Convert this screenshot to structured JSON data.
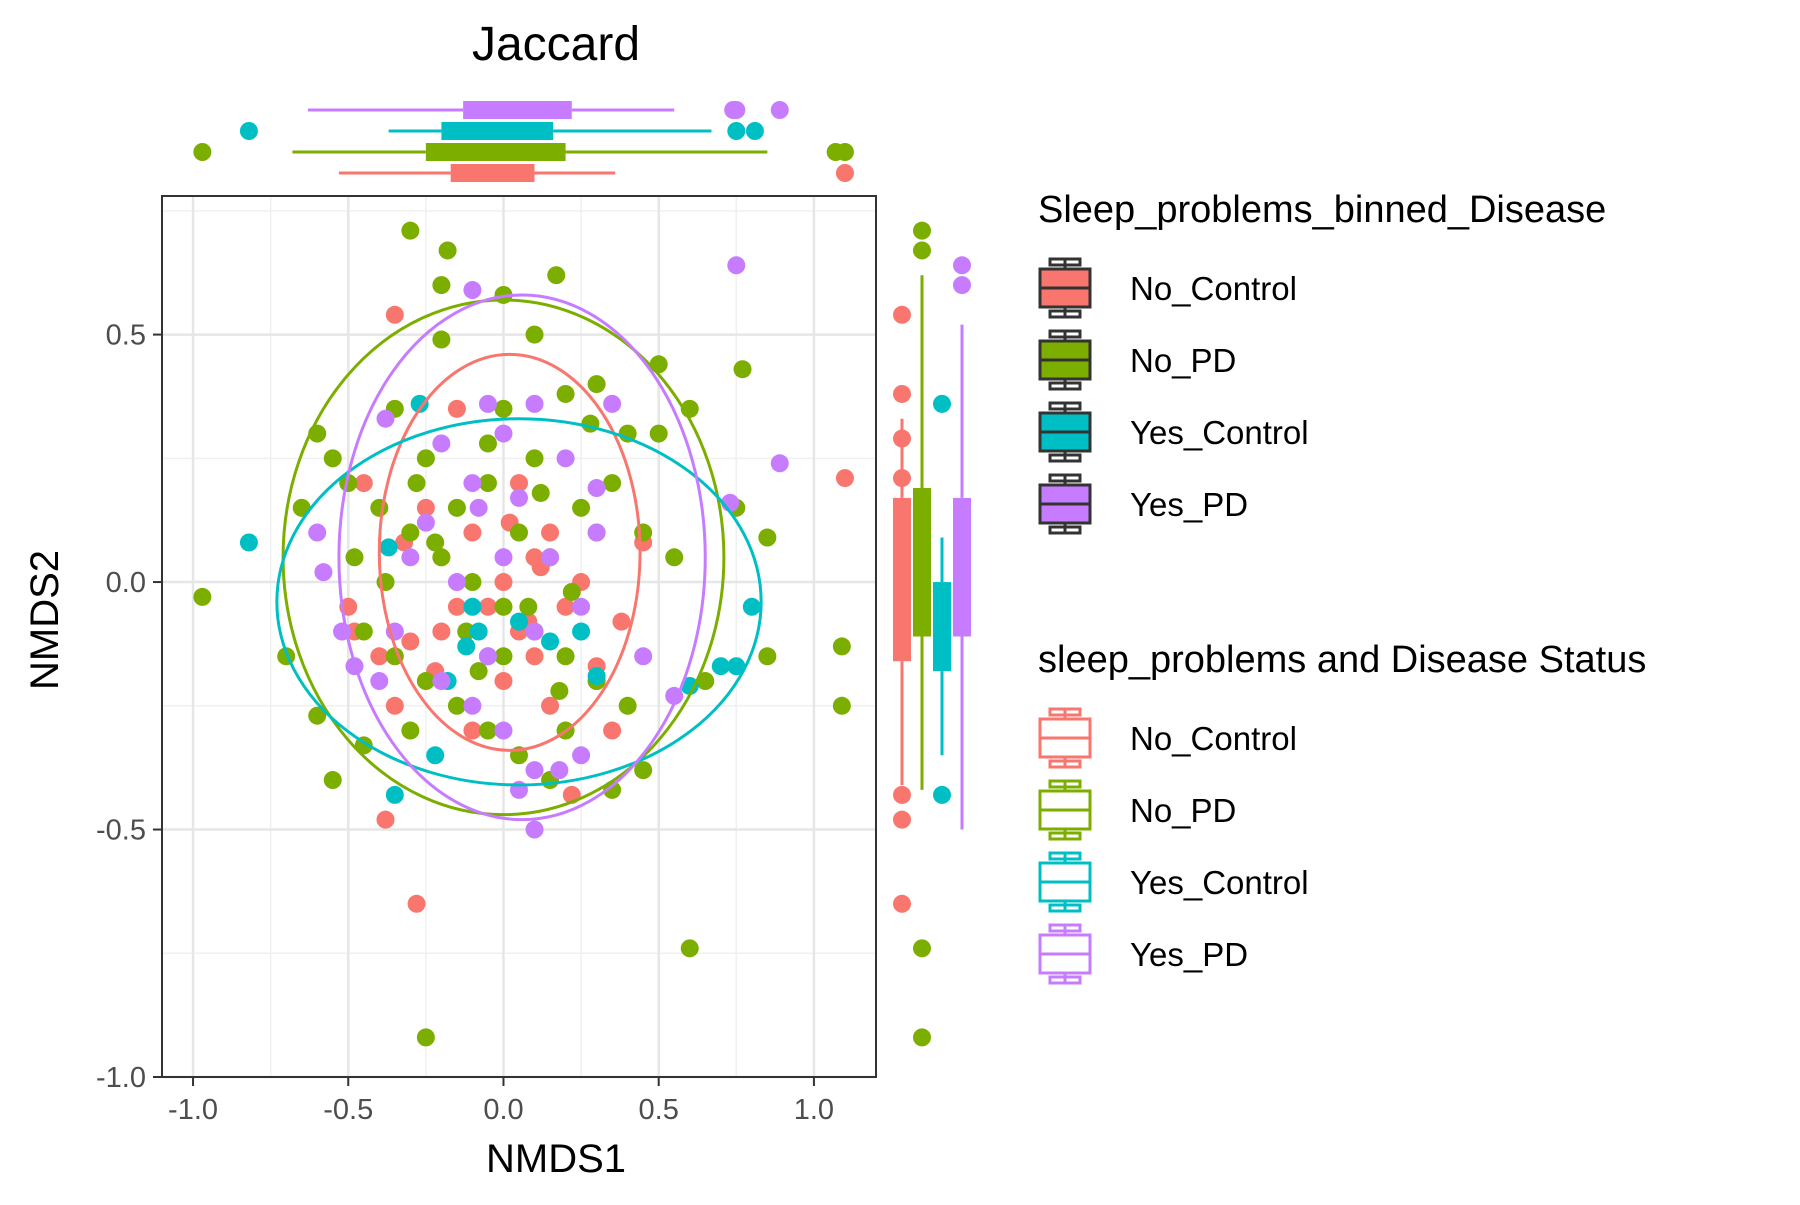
{
  "chart_data": {
    "type": "scatter",
    "title": "Jaccard",
    "xlabel": "NMDS1",
    "ylabel": "NMDS2",
    "xlim": [
      -1.1,
      1.2
    ],
    "ylim": [
      -1.0,
      0.78
    ],
    "xticks": [
      -1.0,
      -0.5,
      0.0,
      0.5,
      1.0
    ],
    "yticks": [
      -1.0,
      -0.5,
      0.0,
      0.5
    ],
    "xtick_labels": [
      "-1.0",
      "-0.5",
      "0.0",
      "0.5",
      "1.0"
    ],
    "ytick_labels": [
      "-1.0",
      "-0.5",
      "0.0",
      "0.5"
    ],
    "grid": true,
    "legend_position": "right",
    "legends": [
      {
        "title": "Sleep_problems_binned_Disease",
        "style": "filled",
        "entries": [
          "No_Control",
          "No_PD",
          "Yes_Control",
          "Yes_PD"
        ]
      },
      {
        "title": "sleep_problems and Disease Status",
        "style": "outline",
        "entries": [
          "No_Control",
          "No_PD",
          "Yes_Control",
          "Yes_PD"
        ]
      }
    ],
    "colors": {
      "No_Control": "#F8766D",
      "No_PD": "#7CAE00",
      "Yes_Control": "#00BFC4",
      "Yes_PD": "#C77CFF"
    },
    "series": [
      {
        "name": "No_Control",
        "color": "#F8766D",
        "points": [
          [
            -0.35,
            0.54
          ],
          [
            -0.3,
            -0.12
          ],
          [
            -0.25,
            0.15
          ],
          [
            -0.2,
            0.05
          ],
          [
            -0.15,
            -0.05
          ],
          [
            -0.1,
            0.1
          ],
          [
            -0.05,
            -0.15
          ],
          [
            0.0,
            0.0
          ],
          [
            0.05,
            -0.1
          ],
          [
            0.1,
            0.05
          ],
          [
            0.15,
            0.1
          ],
          [
            0.2,
            -0.05
          ],
          [
            0.25,
            0.0
          ],
          [
            0.3,
            -0.2
          ],
          [
            -0.4,
            -0.15
          ],
          [
            -0.5,
            -0.05
          ],
          [
            -0.35,
            -0.25
          ],
          [
            -0.28,
            -0.65
          ],
          [
            -0.38,
            -0.48
          ],
          [
            0.22,
            -0.43
          ],
          [
            0.35,
            -0.3
          ],
          [
            0.45,
            0.08
          ],
          [
            -0.45,
            0.2
          ],
          [
            0.0,
            -0.2
          ],
          [
            0.1,
            -0.15
          ],
          [
            -0.2,
            -0.1
          ],
          [
            0.15,
            -0.25
          ],
          [
            -0.1,
            -0.3
          ],
          [
            0.05,
            0.2
          ],
          [
            -0.15,
            0.35
          ],
          [
            0.3,
            -0.17
          ],
          [
            -0.05,
            -0.05
          ],
          [
            0.08,
            -0.08
          ],
          [
            0.12,
            0.03
          ],
          [
            -0.22,
            -0.18
          ],
          [
            0.02,
            0.12
          ],
          [
            1.1,
            0.21
          ],
          [
            -0.48,
            -0.1
          ],
          [
            0.38,
            -0.08
          ],
          [
            -0.32,
            0.08
          ]
        ],
        "box_x": {
          "lower": -0.53,
          "q1": -0.17,
          "median": -0.05,
          "q3": 0.1,
          "upper": 0.36,
          "outliers": [
            1.1
          ]
        },
        "box_y": {
          "lower": -0.41,
          "q1": -0.16,
          "median": -0.05,
          "q3": 0.17,
          "upper": 0.33,
          "outliers": [
            0.54,
            0.38,
            0.29,
            0.21,
            -0.43,
            -0.48,
            -0.65
          ]
        }
      },
      {
        "name": "No_PD",
        "color": "#7CAE00",
        "points": [
          [
            -0.3,
            0.71
          ],
          [
            -0.18,
            0.67
          ],
          [
            -0.97,
            -0.03
          ],
          [
            -0.25,
            -0.92
          ],
          [
            0.6,
            -0.74
          ],
          [
            1.09,
            -0.13
          ],
          [
            1.09,
            -0.25
          ],
          [
            0.85,
            -0.15
          ],
          [
            0.77,
            0.43
          ],
          [
            0.17,
            0.62
          ],
          [
            -0.2,
            0.6
          ],
          [
            0.0,
            0.58
          ],
          [
            -0.2,
            0.49
          ],
          [
            0.5,
            0.44
          ],
          [
            0.2,
            0.38
          ],
          [
            0.5,
            0.3
          ],
          [
            -0.6,
            0.3
          ],
          [
            -0.55,
            0.25
          ],
          [
            -0.5,
            0.2
          ],
          [
            -0.4,
            0.15
          ],
          [
            -0.3,
            0.1
          ],
          [
            -0.2,
            0.05
          ],
          [
            -0.1,
            0.0
          ],
          [
            0.0,
            -0.05
          ],
          [
            0.1,
            -0.1
          ],
          [
            0.2,
            -0.15
          ],
          [
            0.3,
            -0.2
          ],
          [
            0.4,
            -0.25
          ],
          [
            -0.45,
            -0.1
          ],
          [
            -0.35,
            -0.15
          ],
          [
            -0.25,
            -0.2
          ],
          [
            -0.15,
            -0.25
          ],
          [
            -0.05,
            -0.3
          ],
          [
            0.05,
            -0.35
          ],
          [
            0.15,
            -0.4
          ],
          [
            0.35,
            -0.42
          ],
          [
            -0.6,
            -0.27
          ],
          [
            -0.55,
            -0.4
          ],
          [
            -0.45,
            -0.33
          ],
          [
            -0.25,
            0.25
          ],
          [
            -0.15,
            0.15
          ],
          [
            -0.05,
            0.2
          ],
          [
            0.05,
            0.1
          ],
          [
            0.15,
            0.05
          ],
          [
            0.25,
            0.15
          ],
          [
            0.35,
            0.2
          ],
          [
            0.45,
            0.1
          ],
          [
            0.55,
            0.05
          ],
          [
            0.65,
            -0.2
          ],
          [
            -0.65,
            0.15
          ],
          [
            -0.7,
            -0.15
          ],
          [
            -0.3,
            -0.3
          ],
          [
            0.0,
            0.35
          ],
          [
            0.1,
            0.25
          ],
          [
            -0.35,
            0.35
          ],
          [
            0.3,
            0.1
          ],
          [
            0.2,
            -0.3
          ],
          [
            0.4,
            0.3
          ],
          [
            0.6,
            0.35
          ],
          [
            0.45,
            -0.38
          ],
          [
            -0.48,
            0.05
          ],
          [
            0.08,
            -0.05
          ],
          [
            -0.12,
            -0.1
          ],
          [
            0.22,
            -0.02
          ],
          [
            -0.22,
            0.08
          ],
          [
            0.12,
            0.18
          ],
          [
            -0.08,
            -0.18
          ],
          [
            0.28,
            0.32
          ],
          [
            -0.38,
            0.0
          ],
          [
            0.0,
            -0.15
          ],
          [
            -0.28,
            0.2
          ],
          [
            0.18,
            -0.22
          ],
          [
            0.85,
            0.09
          ],
          [
            0.75,
            0.15
          ],
          [
            -0.05,
            0.28
          ],
          [
            0.3,
            0.4
          ],
          [
            0.1,
            0.5
          ]
        ],
        "box_x": {
          "lower": -0.68,
          "q1": -0.25,
          "median": 0.0,
          "q3": 0.2,
          "upper": 0.85,
          "outliers": [
            -0.97,
            1.07,
            1.1
          ]
        },
        "box_y": {
          "lower": -0.42,
          "q1": -0.11,
          "median": 0.0,
          "q3": 0.19,
          "upper": 0.62,
          "outliers": [
            0.67,
            0.71,
            -0.74,
            -0.92
          ]
        }
      },
      {
        "name": "Yes_Control",
        "color": "#00BFC4",
        "points": [
          [
            -0.82,
            0.08
          ],
          [
            -0.35,
            -0.43
          ],
          [
            -0.27,
            0.36
          ],
          [
            -0.22,
            -0.35
          ],
          [
            -0.12,
            -0.13
          ],
          [
            -0.08,
            -0.1
          ],
          [
            0.05,
            -0.08
          ],
          [
            0.15,
            -0.12
          ],
          [
            0.25,
            -0.1
          ],
          [
            0.3,
            -0.19
          ],
          [
            -0.37,
            0.07
          ],
          [
            0.6,
            -0.21
          ],
          [
            0.8,
            -0.05
          ],
          [
            0.75,
            -0.17
          ],
          [
            0.7,
            -0.17
          ],
          [
            -0.1,
            -0.05
          ],
          [
            -0.18,
            -0.2
          ]
        ],
        "box_x": {
          "lower": -0.37,
          "q1": -0.2,
          "median": -0.1,
          "q3": 0.16,
          "upper": 0.67,
          "outliers": [
            -0.82,
            0.75,
            0.81
          ]
        },
        "box_y": {
          "lower": -0.35,
          "q1": -0.18,
          "median": -0.11,
          "q3": 0.0,
          "upper": 0.09,
          "outliers": [
            0.36,
            -0.43
          ]
        }
      },
      {
        "name": "Yes_PD",
        "color": "#C77CFF",
        "points": [
          [
            0.75,
            0.64
          ],
          [
            0.89,
            0.24
          ],
          [
            0.73,
            0.16
          ],
          [
            -0.1,
            0.59
          ],
          [
            -0.05,
            0.36
          ],
          [
            0.1,
            0.36
          ],
          [
            0.35,
            0.36
          ],
          [
            -0.38,
            0.33
          ],
          [
            -0.2,
            0.28
          ],
          [
            0.0,
            0.3
          ],
          [
            0.2,
            0.25
          ],
          [
            -0.1,
            0.2
          ],
          [
            0.05,
            0.17
          ],
          [
            0.3,
            0.19
          ],
          [
            -0.6,
            0.1
          ],
          [
            -0.3,
            0.05
          ],
          [
            -0.15,
            0.0
          ],
          [
            0.0,
            0.05
          ],
          [
            0.15,
            0.05
          ],
          [
            0.25,
            -0.05
          ],
          [
            0.1,
            -0.1
          ],
          [
            -0.05,
            -0.15
          ],
          [
            -0.2,
            -0.2
          ],
          [
            -0.35,
            -0.1
          ],
          [
            0.45,
            -0.15
          ],
          [
            0.55,
            -0.23
          ],
          [
            -0.48,
            -0.17
          ],
          [
            -0.1,
            -0.25
          ],
          [
            0.0,
            -0.3
          ],
          [
            0.1,
            -0.38
          ],
          [
            0.05,
            -0.42
          ],
          [
            0.25,
            -0.35
          ],
          [
            0.18,
            -0.38
          ],
          [
            0.1,
            -0.5
          ],
          [
            -0.4,
            -0.2
          ],
          [
            -0.58,
            0.02
          ],
          [
            -0.52,
            -0.1
          ],
          [
            0.3,
            0.1
          ],
          [
            -0.25,
            0.12
          ],
          [
            -0.08,
            0.15
          ]
        ],
        "box_x": {
          "lower": -0.63,
          "q1": -0.13,
          "median": 0.02,
          "q3": 0.22,
          "upper": 0.55,
          "outliers": [
            0.74,
            0.75,
            0.89
          ]
        },
        "box_y": {
          "lower": -0.5,
          "q1": -0.11,
          "median": 0.0,
          "q3": 0.17,
          "upper": 0.52,
          "outliers": [
            0.6,
            0.64
          ]
        }
      }
    ],
    "ellipses": [
      {
        "name": "No_Control",
        "cx": 0.02,
        "cy": 0.06,
        "rx": 0.42,
        "ry": 0.4
      },
      {
        "name": "No_PD",
        "cx": 0.0,
        "cy": 0.05,
        "rx": 0.71,
        "ry": 0.52
      },
      {
        "name": "Yes_Control",
        "cx": 0.05,
        "cy": -0.04,
        "rx": 0.78,
        "ry": 0.37
      },
      {
        "name": "Yes_PD",
        "cx": 0.06,
        "cy": 0.05,
        "rx": 0.59,
        "ry": 0.53
      }
    ]
  }
}
